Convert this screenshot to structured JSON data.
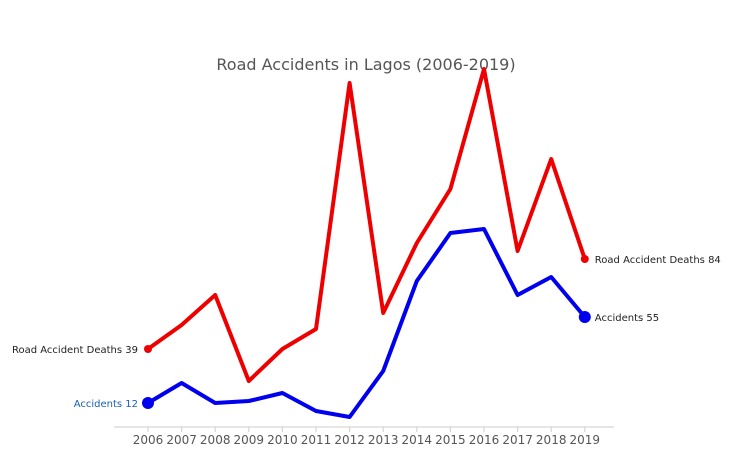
{
  "chart_data": {
    "type": "line",
    "title": "Road Accidents in Lagos (2006-2019)",
    "xlabel": "",
    "ylabel": "",
    "categories": [
      "2006",
      "2007",
      "2008",
      "2009",
      "2010",
      "2011",
      "2012",
      "2013",
      "2014",
      "2015",
      "2016",
      "2017",
      "2018",
      "2019"
    ],
    "ylim": [
      0,
      200
    ],
    "grid": false,
    "legend": "none",
    "series": [
      {
        "name": "Road Accident Deaths",
        "color": "#ee0000",
        "values": [
          39,
          51,
          66,
          23,
          39,
          49,
          172,
          57,
          92,
          119,
          179,
          88,
          134,
          84
        ],
        "start_label": "Road Accident Deaths  39",
        "end_label": "Road Accident Deaths  84",
        "start_label_color": "#222222",
        "end_label_color": "#222222"
      },
      {
        "name": "Accidents",
        "color": "#0000ee",
        "values": [
          12,
          22,
          12,
          13,
          17,
          8,
          5,
          28,
          73,
          97,
          99,
          66,
          75,
          55
        ],
        "start_label": "Accidents  12",
        "end_label": "Accidents  55",
        "start_label_color": "#1a5fb4",
        "end_label_color": "#222222"
      }
    ]
  }
}
